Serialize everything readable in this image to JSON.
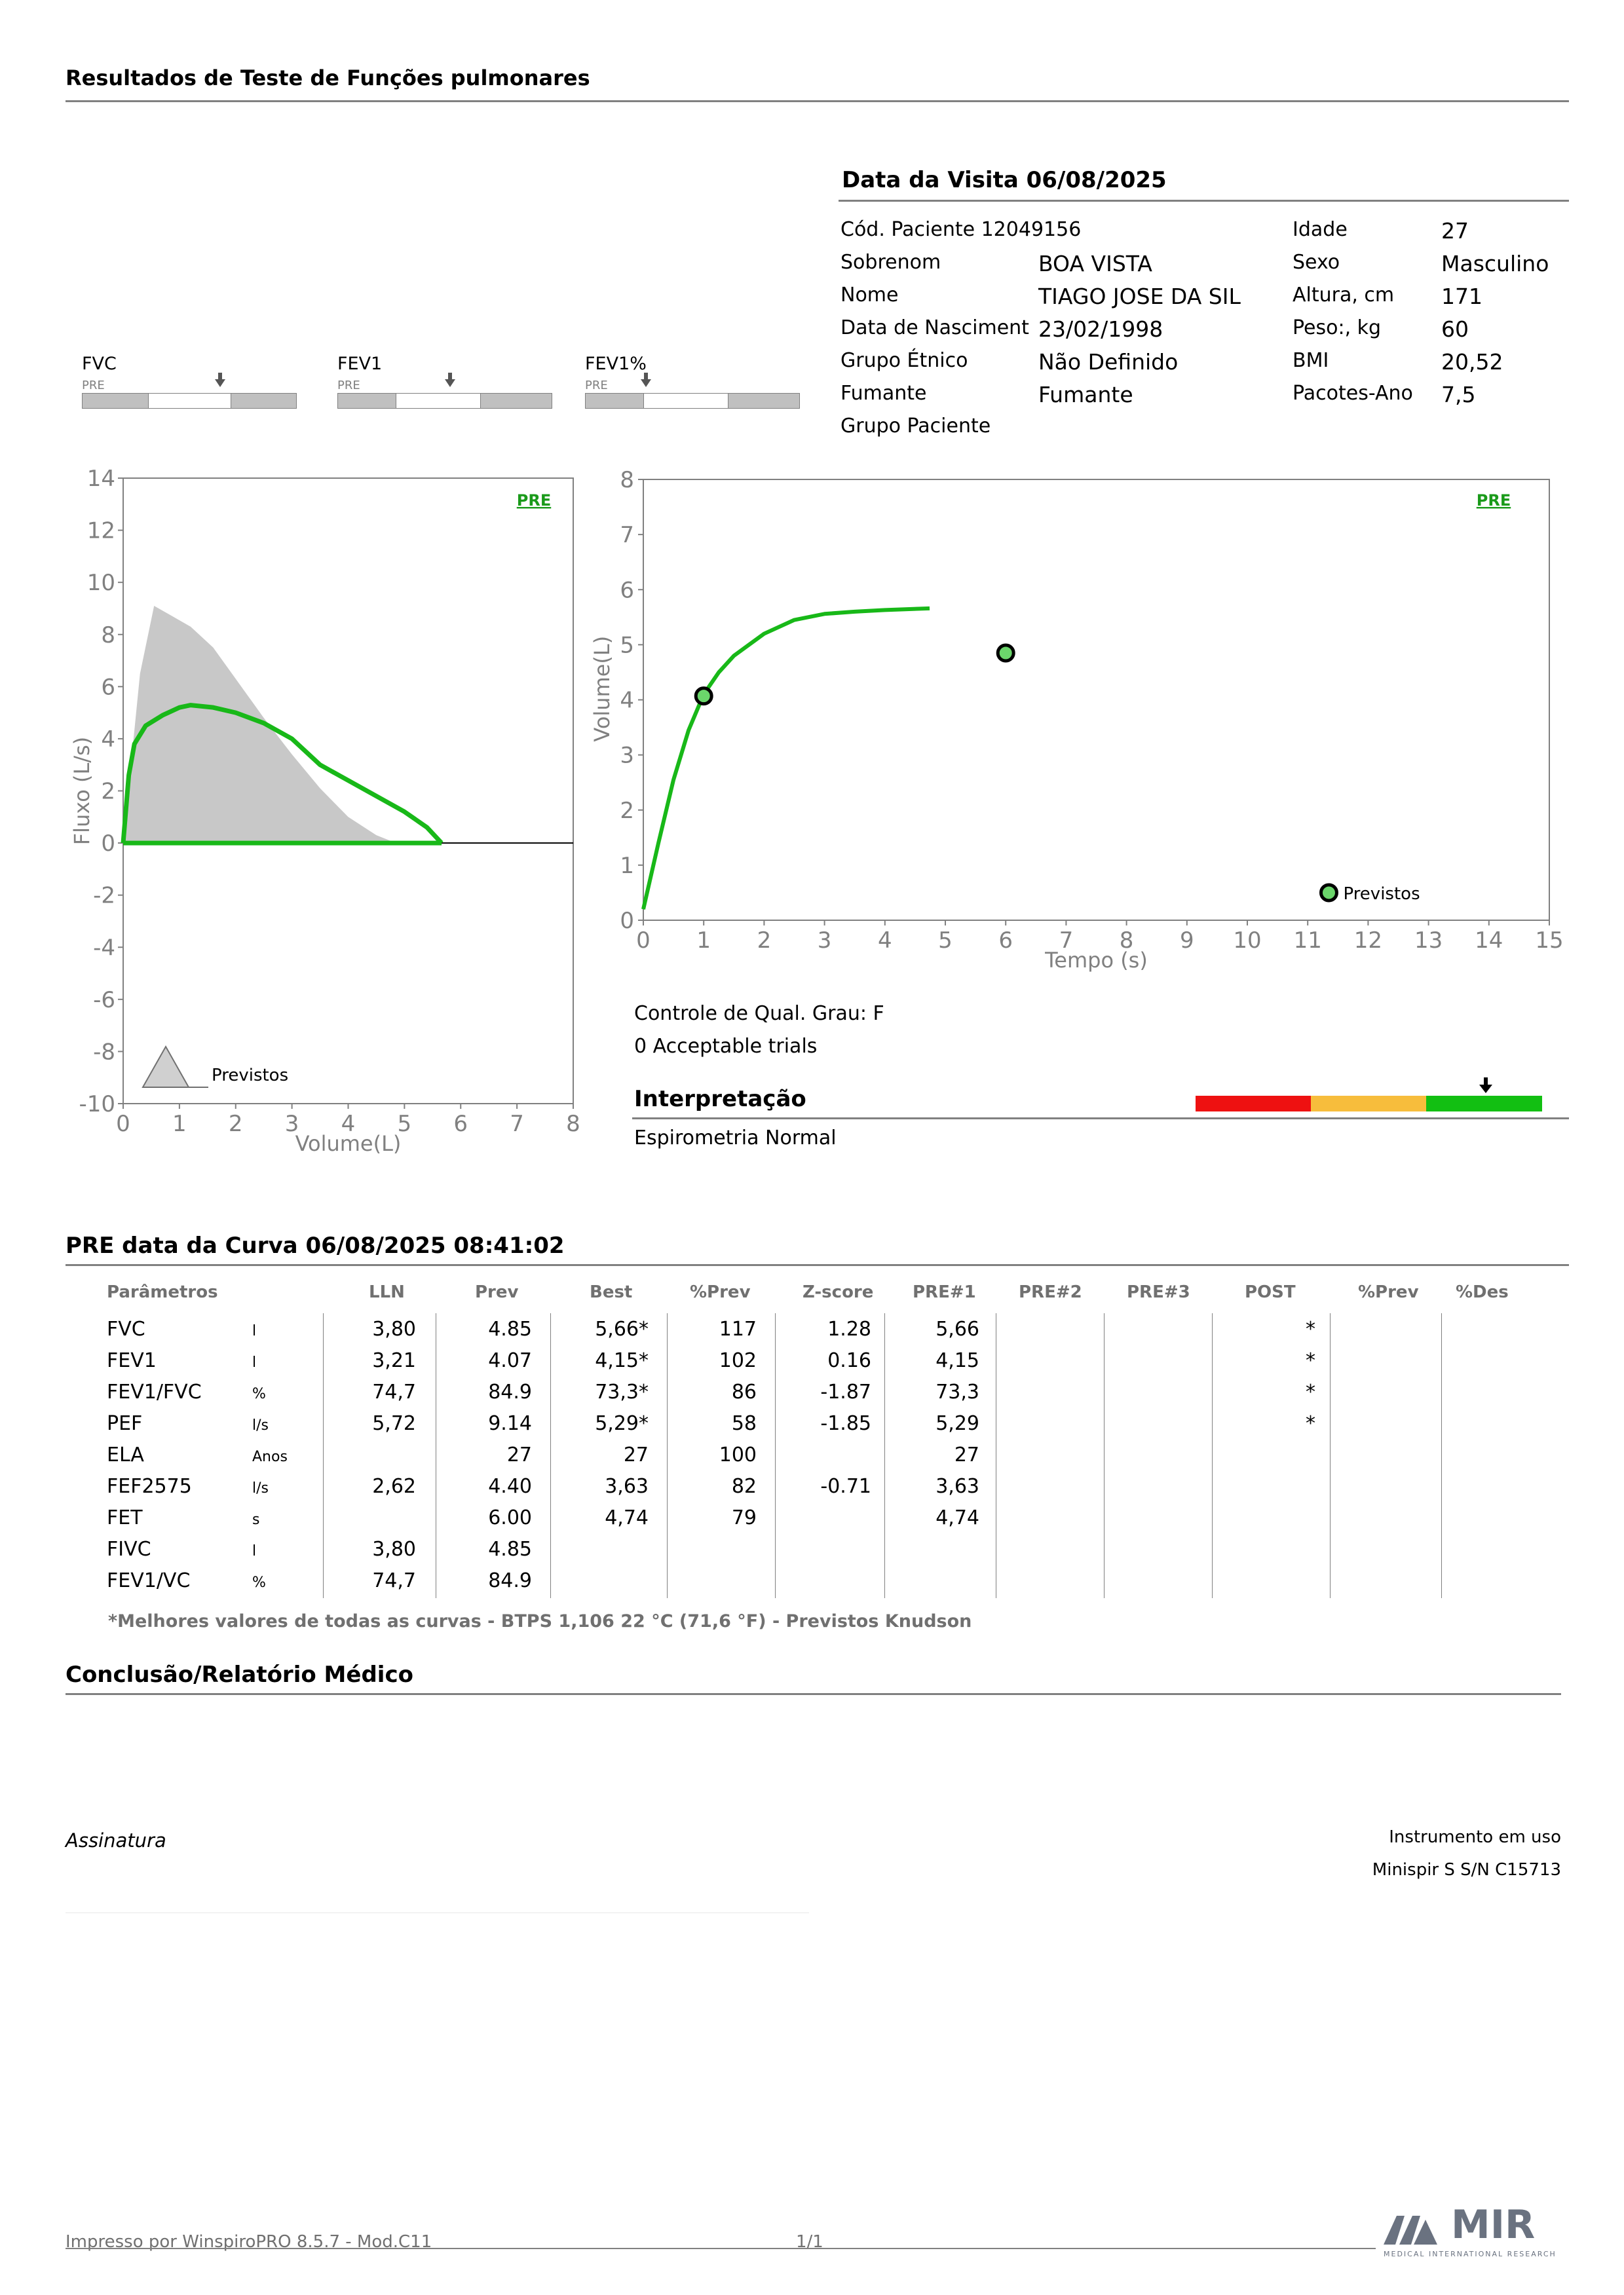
{
  "report": {
    "title": "Resultados de Teste de Funções pulmonares",
    "visit_title": "Data da Visita 06/08/2025"
  },
  "patient": {
    "code_label": "Cód. Paciente 12049156",
    "surname_label": "Sobrenom",
    "surname": "BOA VISTA",
    "name_label": "Nome",
    "name": "TIAGO JOSE DA SIL",
    "birth_label": "Data de Nasciment",
    "birth": "23/02/1998",
    "ethnic_label": "Grupo Étnico",
    "ethnic": "Não Definido",
    "smoker_label": "Fumante",
    "smoker": "Fumante",
    "group_label": "Grupo Paciente",
    "age_label": "Idade",
    "age": "27",
    "sex_label": "Sexo",
    "sex": "Masculino",
    "height_label": "Altura, cm",
    "height": "171",
    "weight_label": "Peso:, kg",
    "weight": "60",
    "bmi_label": "BMI",
    "bmi": "20,52",
    "packs_label": "Pacotes-Ano",
    "packs": "7,5"
  },
  "mini_scales": [
    {
      "label": "FVC",
      "tag": "PRE",
      "marker": 0.64
    },
    {
      "label": "FEV1",
      "tag": "PRE",
      "marker": 0.52
    },
    {
      "label": "FEV1%",
      "tag": "PRE",
      "marker": 0.28
    }
  ],
  "chart_data": [
    {
      "type": "line",
      "title": "PRE",
      "xlabel": "Volume(L)",
      "ylabel": "Fluxo (L/s)",
      "xlim": [
        0,
        8
      ],
      "ylim": [
        -10,
        14
      ],
      "xticks": [
        "0",
        "1",
        "2",
        "3",
        "4",
        "5",
        "6",
        "7",
        "8"
      ],
      "yticks": [
        "14",
        "12",
        "10",
        "8",
        "6",
        "4",
        "2",
        "0",
        "-2",
        "-4",
        "-6",
        "-8",
        "-10"
      ],
      "legend": "Previstos",
      "series": [
        {
          "role": "predicted",
          "color": "#c8c8c8",
          "x": [
            0,
            0.3,
            0.55,
            1.2,
            1.6,
            2.0,
            2.5,
            3.0,
            3.5,
            4.0,
            4.5,
            4.85,
            0
          ],
          "y": [
            0,
            6.5,
            9.1,
            8.3,
            7.5,
            6.3,
            4.8,
            3.4,
            2.1,
            1.0,
            0.3,
            0,
            0
          ]
        },
        {
          "role": "measured",
          "color": "#18b818",
          "x": [
            0,
            0.1,
            0.2,
            0.4,
            0.7,
            1.0,
            1.2,
            1.6,
            2.0,
            2.5,
            3.0,
            3.5,
            4.0,
            4.5,
            5.0,
            5.4,
            5.66
          ],
          "y": [
            0,
            2.6,
            3.8,
            4.5,
            4.9,
            5.2,
            5.29,
            5.2,
            5.0,
            4.6,
            4.0,
            3.0,
            2.4,
            1.8,
            1.2,
            0.6,
            0
          ]
        }
      ]
    },
    {
      "type": "line",
      "title": "PRE",
      "xlabel": "Tempo (s)",
      "ylabel": "Volume(L)",
      "xlim": [
        0,
        15
      ],
      "ylim": [
        0,
        8
      ],
      "xticks": [
        "0",
        "1",
        "2",
        "3",
        "4",
        "5",
        "6",
        "7",
        "8",
        "9",
        "10",
        "11",
        "12",
        "13",
        "14",
        "15"
      ],
      "yticks": [
        "8",
        "7",
        "6",
        "5",
        "4",
        "3",
        "2",
        "1",
        "0"
      ],
      "legend": "Previstos",
      "series": [
        {
          "role": "measured",
          "color": "#18b818",
          "x": [
            0,
            0.25,
            0.5,
            0.75,
            1.0,
            1.25,
            1.5,
            2.0,
            2.5,
            3.0,
            3.5,
            4.0,
            4.74
          ],
          "y": [
            0.2,
            1.4,
            2.55,
            3.45,
            4.1,
            4.5,
            4.8,
            5.2,
            5.45,
            5.56,
            5.6,
            5.63,
            5.66
          ]
        }
      ],
      "points": [
        {
          "x": 1.0,
          "y": 4.07
        },
        {
          "x": 6.0,
          "y": 4.85
        }
      ]
    }
  ],
  "quality": {
    "grade": "Controle de Qual. Grau: F",
    "trials": "0 Acceptable trials"
  },
  "interpretation": {
    "title": "Interpretação",
    "text": "Espirometria Normal",
    "colors": [
      "#ee1111",
      "#f7bd3c",
      "#12bf12"
    ]
  },
  "curve": {
    "title": "PRE data da Curva 06/08/2025   08:41:02",
    "headers": [
      "Parâmetros",
      "LLN",
      "Prev",
      "Best",
      "%Prev",
      "Z-score",
      "PRE#1",
      "PRE#2",
      "PRE#3",
      "POST",
      "%Prev",
      "%Des"
    ],
    "rows": [
      {
        "param": "FVC",
        "unit": "l",
        "lln": "3,80",
        "prev": "4.85",
        "best": "5,66*",
        "pprev": "117",
        "z": "1.28",
        "pre1": "5,66",
        "post": "*"
      },
      {
        "param": "FEV1",
        "unit": "l",
        "lln": "3,21",
        "prev": "4.07",
        "best": "4,15*",
        "pprev": "102",
        "z": "0.16",
        "pre1": "4,15",
        "post": "*"
      },
      {
        "param": "FEV1/FVC",
        "unit": "%",
        "lln": "74,7",
        "prev": "84.9",
        "best": "73,3*",
        "pprev": "86",
        "z": "-1.87",
        "pre1": "73,3",
        "post": "*"
      },
      {
        "param": "PEF",
        "unit": "l/s",
        "lln": "5,72",
        "prev": "9.14",
        "best": "5,29*",
        "pprev": "58",
        "z": "-1.85",
        "pre1": "5,29",
        "post": "*"
      },
      {
        "param": "ELA",
        "unit": "Anos",
        "lln": "",
        "prev": "27",
        "best": "27",
        "pprev": "100",
        "z": "",
        "pre1": "27",
        "post": ""
      },
      {
        "param": "FEF2575",
        "unit": "l/s",
        "lln": "2,62",
        "prev": "4.40",
        "best": "3,63",
        "pprev": "82",
        "z": "-0.71",
        "pre1": "3,63",
        "post": ""
      },
      {
        "param": "FET",
        "unit": "s",
        "lln": "",
        "prev": "6.00",
        "best": "4,74",
        "pprev": "79",
        "z": "",
        "pre1": "4,74",
        "post": ""
      },
      {
        "param": "FIVC",
        "unit": "l",
        "lln": "3,80",
        "prev": "4.85",
        "best": "",
        "pprev": "",
        "z": "",
        "pre1": "",
        "post": ""
      },
      {
        "param": "FEV1/VC",
        "unit": "%",
        "lln": "74,7",
        "prev": "84.9",
        "best": "",
        "pprev": "",
        "z": "",
        "pre1": "",
        "post": ""
      }
    ],
    "footnote": "*Melhores valores de todas as curvas - BTPS  1,106  22 °C  (71,6 °F) - Previstos Knudson"
  },
  "conclusion": {
    "title": "Conclusão/Relatório Médico",
    "signature": "Assinatura",
    "instrument_label": "Instrumento em uso",
    "instrument": "Minispir S S/N C15713"
  },
  "footer": {
    "printed_by": "Impresso por WinspiroPRO  8.5.7 - Mod.C11",
    "page": "1/1",
    "logo": "MIR",
    "logo_sub": "MEDICAL INTERNATIONAL RESEARCH"
  }
}
